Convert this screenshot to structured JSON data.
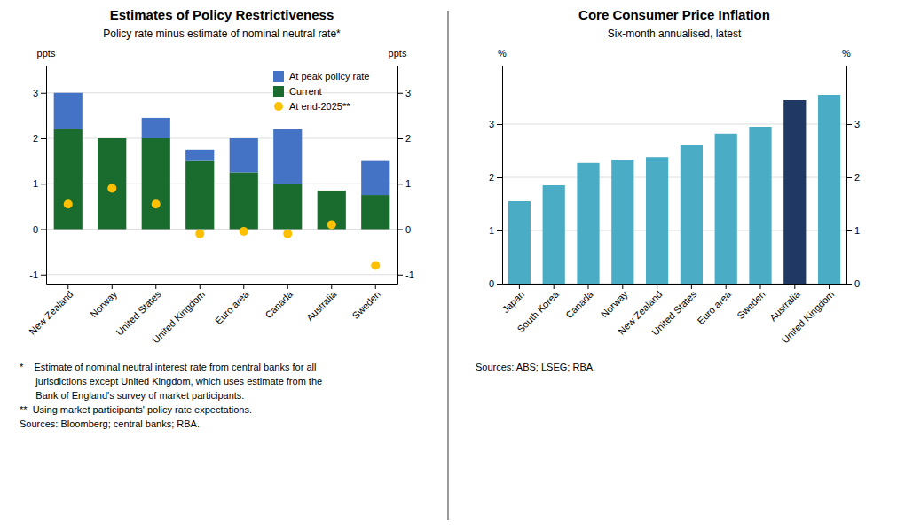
{
  "chart_data": [
    {
      "type": "bar",
      "title": "Estimates of Policy Restrictiveness",
      "subtitle": "Policy rate minus estimate of nominal neutral rate*",
      "ylabel": "ppts",
      "y2label": "ppts",
      "categories": [
        "New Zealand",
        "Norway",
        "United States",
        "United Kingdom",
        "Euro area",
        "Canada",
        "Australia",
        "Sweden"
      ],
      "stacked": true,
      "series": [
        {
          "name": "Current",
          "color": "#1a6b2e",
          "values": [
            2.2,
            2.0,
            2.0,
            1.5,
            1.25,
            1.0,
            0.85,
            0.75
          ]
        },
        {
          "name": "At peak policy rate",
          "color": "#4472C4",
          "values": [
            0.8,
            0.0,
            0.45,
            0.25,
            0.75,
            1.2,
            0.0,
            0.75
          ]
        },
        {
          "name": "At end-2025**",
          "type": "scatter",
          "marker": "circle",
          "color": "#FFC000",
          "values": [
            0.55,
            0.9,
            0.55,
            -0.1,
            -0.05,
            -0.1,
            0.1,
            -0.8
          ]
        }
      ],
      "ylim": [
        -1.2,
        3.6
      ],
      "yticks": [
        -1,
        0,
        1,
        2,
        3
      ],
      "y2lim": [
        -1.2,
        3.6
      ],
      "y2ticks": [
        -1,
        0,
        1,
        2,
        3
      ],
      "grid": true,
      "legend": "upper-right",
      "footnotes": [
        "*    Estimate of nominal neutral interest rate from central banks for all",
        "      jurisdictions except United Kingdom, which uses estimate from the",
        "      Bank of England's survey of market participants.",
        "**  Using market participants' policy rate expectations.",
        "Sources: Bloomberg; central banks; RBA."
      ]
    },
    {
      "type": "bar",
      "title": "Core Consumer Price Inflation",
      "subtitle": "Six-month annualised, latest",
      "ylabel": "%",
      "y2label": "%",
      "categories": [
        "Japan",
        "South Korea",
        "Canada",
        "Norway",
        "New Zealand",
        "United States",
        "Euro area",
        "Sweden",
        "Australia",
        "United Kingdom"
      ],
      "values": [
        1.55,
        1.85,
        2.27,
        2.33,
        2.38,
        2.6,
        2.82,
        2.95,
        3.45,
        3.55
      ],
      "colors": [
        "#4BACC6",
        "#4BACC6",
        "#4BACC6",
        "#4BACC6",
        "#4BACC6",
        "#4BACC6",
        "#4BACC6",
        "#4BACC6",
        "#1F3864",
        "#4BACC6"
      ],
      "ylim": [
        0,
        4.1
      ],
      "yticks": [
        0,
        1,
        2,
        3
      ],
      "y2lim": [
        0,
        4.1
      ],
      "y2ticks": [
        0,
        1,
        2,
        3
      ],
      "grid": true,
      "footnotes": [
        "Sources: ABS; LSEG; RBA."
      ]
    }
  ]
}
